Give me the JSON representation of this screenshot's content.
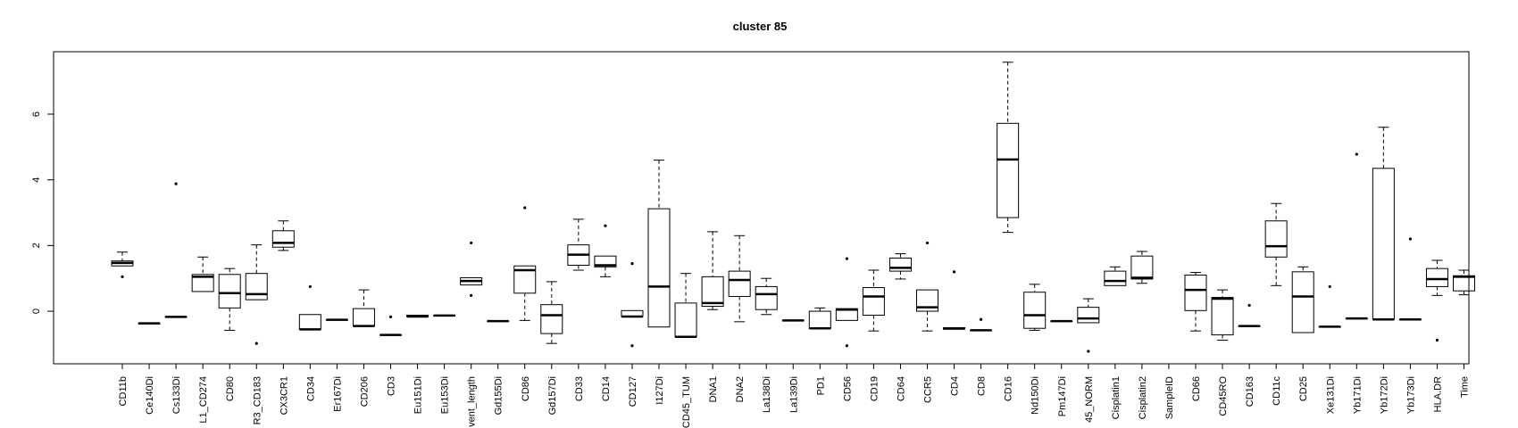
{
  "chart_data": {
    "type": "boxplot",
    "title": "cluster 85",
    "xlabel": "",
    "ylabel": "",
    "ylim": [
      -1.6,
      7.9
    ],
    "y_ticks": [
      0,
      2,
      4,
      6
    ],
    "grid": false,
    "legend": "none",
    "categories": [
      "CD11b",
      "Ce140Di",
      "Cs133Di",
      "L1_CD274",
      "CD80",
      "R3_CD183",
      "CX3CR1",
      "CD34",
      "Er167Di",
      "CD206",
      "CD3",
      "Eu151Di",
      "Eu153Di",
      "vent_length",
      "Gd155Di",
      "CD86",
      "Gd157Di",
      "CD33",
      "CD14",
      "CD127",
      "I127Di",
      "CD45_TUM",
      "DNA1",
      "DNA2",
      "La138Di",
      "La139Di",
      "PD1",
      "CD56",
      "CD19",
      "CD64",
      "CCR5",
      "CD4",
      "CD8",
      "CD16",
      "Nd150Di",
      "Pm147Di",
      "45_NORM",
      "Cisplatin1",
      "Cisplatin2",
      "SampleID",
      "CD66",
      "CD45RO",
      "CD163",
      "CD11c",
      "CD25",
      "Xe131Di",
      "Yb171Di",
      "Yb172Di",
      "Yb173Di",
      "HLA.DR",
      "Time"
    ],
    "boxes": [
      {
        "wlo": 1.38,
        "q1": 1.38,
        "med": 1.47,
        "q3": 1.53,
        "whi": 1.8,
        "out": [
          1.05
        ]
      },
      {
        "wlo": -0.37,
        "q1": -0.37,
        "med": -0.37,
        "q3": -0.37,
        "whi": -0.37,
        "out": []
      },
      {
        "wlo": -0.17,
        "q1": -0.17,
        "med": -0.17,
        "q3": -0.17,
        "whi": -0.17,
        "out": [
          3.88
        ]
      },
      {
        "wlo": 0.6,
        "q1": 0.6,
        "med": 1.05,
        "q3": 1.12,
        "whi": 1.65,
        "out": []
      },
      {
        "wlo": -0.58,
        "q1": 0.1,
        "med": 0.55,
        "q3": 1.12,
        "whi": 1.3,
        "out": []
      },
      {
        "wlo": 0.35,
        "q1": 0.35,
        "med": 0.52,
        "q3": 1.15,
        "whi": 2.02,
        "out": [
          -0.98
        ]
      },
      {
        "wlo": 1.85,
        "q1": 1.95,
        "med": 2.08,
        "q3": 2.45,
        "whi": 2.75,
        "out": []
      },
      {
        "wlo": -0.55,
        "q1": -0.55,
        "med": -0.55,
        "q3": -0.1,
        "whi": -0.1,
        "out": [
          0.75
        ]
      },
      {
        "wlo": -0.26,
        "q1": -0.26,
        "med": -0.26,
        "q3": -0.26,
        "whi": -0.26,
        "out": []
      },
      {
        "wlo": -0.45,
        "q1": -0.45,
        "med": -0.45,
        "q3": 0.08,
        "whi": 0.65,
        "out": []
      },
      {
        "wlo": -0.72,
        "q1": -0.72,
        "med": -0.72,
        "q3": -0.72,
        "whi": -0.72,
        "out": [
          -0.17
        ]
      },
      {
        "wlo": -0.16,
        "q1": -0.16,
        "med": -0.16,
        "q3": -0.12,
        "whi": -0.12,
        "out": []
      },
      {
        "wlo": -0.13,
        "q1": -0.13,
        "med": -0.13,
        "q3": -0.13,
        "whi": -0.13,
        "out": []
      },
      {
        "wlo": 0.8,
        "q1": 0.8,
        "med": 0.92,
        "q3": 1.02,
        "whi": 1.02,
        "out": [
          2.08,
          0.48
        ]
      },
      {
        "wlo": -0.3,
        "q1": -0.3,
        "med": -0.3,
        "q3": -0.3,
        "whi": -0.3,
        "out": []
      },
      {
        "wlo": -0.28,
        "q1": 0.55,
        "med": 1.25,
        "q3": 1.38,
        "whi": 1.38,
        "out": [
          3.15
        ]
      },
      {
        "wlo": -0.98,
        "q1": -0.68,
        "med": -0.12,
        "q3": 0.2,
        "whi": 0.9,
        "out": []
      },
      {
        "wlo": 1.25,
        "q1": 1.4,
        "med": 1.72,
        "q3": 2.02,
        "whi": 2.8,
        "out": []
      },
      {
        "wlo": 1.05,
        "q1": 1.35,
        "med": 1.4,
        "q3": 1.68,
        "whi": 1.68,
        "out": [
          2.6
        ]
      },
      {
        "wlo": -0.16,
        "q1": -0.16,
        "med": -0.16,
        "q3": 0.02,
        "whi": 0.02,
        "out": [
          1.45,
          -1.05
        ]
      },
      {
        "wlo": -0.48,
        "q1": -0.48,
        "med": 0.75,
        "q3": 3.12,
        "whi": 4.6,
        "out": []
      },
      {
        "wlo": -0.78,
        "q1": -0.78,
        "med": -0.78,
        "q3": 0.25,
        "whi": 1.15,
        "out": []
      },
      {
        "wlo": 0.05,
        "q1": 0.15,
        "med": 0.25,
        "q3": 1.05,
        "whi": 2.42,
        "out": []
      },
      {
        "wlo": -0.32,
        "q1": 0.45,
        "med": 0.95,
        "q3": 1.22,
        "whi": 2.3,
        "out": []
      },
      {
        "wlo": -0.1,
        "q1": 0.05,
        "med": 0.52,
        "q3": 0.75,
        "whi": 1.0,
        "out": []
      },
      {
        "wlo": -0.28,
        "q1": -0.28,
        "med": -0.28,
        "q3": -0.28,
        "whi": -0.28,
        "out": []
      },
      {
        "wlo": -0.52,
        "q1": -0.52,
        "med": -0.52,
        "q3": 0.0,
        "whi": 0.1,
        "out": []
      },
      {
        "wlo": -0.28,
        "q1": -0.28,
        "med": 0.05,
        "q3": 0.08,
        "whi": 0.08,
        "out": [
          1.6,
          -1.05
        ]
      },
      {
        "wlo": -0.6,
        "q1": -0.12,
        "med": 0.45,
        "q3": 0.72,
        "whi": 1.25,
        "out": []
      },
      {
        "wlo": 0.98,
        "q1": 1.22,
        "med": 1.32,
        "q3": 1.62,
        "whi": 1.75,
        "out": []
      },
      {
        "wlo": -0.6,
        "q1": 0.0,
        "med": 0.12,
        "q3": 0.65,
        "whi": 0.65,
        "out": [
          2.08
        ]
      },
      {
        "wlo": -0.55,
        "q1": -0.55,
        "med": -0.52,
        "q3": -0.5,
        "whi": -0.5,
        "out": [
          1.2
        ]
      },
      {
        "wlo": -0.58,
        "q1": -0.58,
        "med": -0.58,
        "q3": -0.58,
        "whi": -0.58,
        "out": [
          -0.25
        ]
      },
      {
        "wlo": 2.4,
        "q1": 2.85,
        "med": 4.62,
        "q3": 5.72,
        "whi": 7.58,
        "out": []
      },
      {
        "wlo": -0.58,
        "q1": -0.52,
        "med": -0.12,
        "q3": 0.58,
        "whi": 0.82,
        "out": []
      },
      {
        "wlo": -0.3,
        "q1": -0.3,
        "med": -0.3,
        "q3": -0.3,
        "whi": -0.3,
        "out": []
      },
      {
        "wlo": -0.35,
        "q1": -0.35,
        "med": -0.22,
        "q3": 0.12,
        "whi": 0.38,
        "out": [
          -1.22
        ]
      },
      {
        "wlo": 0.78,
        "q1": 0.78,
        "med": 0.92,
        "q3": 1.22,
        "whi": 1.35,
        "out": []
      },
      {
        "wlo": 0.85,
        "q1": 0.98,
        "med": 1.02,
        "q3": 1.68,
        "whi": 1.82,
        "out": []
      },
      {
        "wlo": null,
        "q1": null,
        "med": null,
        "q3": null,
        "whi": null,
        "out": []
      },
      {
        "wlo": -0.6,
        "q1": 0.02,
        "med": 0.65,
        "q3": 1.1,
        "whi": 1.18,
        "out": []
      },
      {
        "wlo": -0.88,
        "q1": -0.72,
        "med": 0.38,
        "q3": 0.42,
        "whi": 0.65,
        "out": []
      },
      {
        "wlo": -0.45,
        "q1": -0.45,
        "med": -0.45,
        "q3": -0.45,
        "whi": -0.45,
        "out": [
          0.18
        ]
      },
      {
        "wlo": 0.78,
        "q1": 1.65,
        "med": 1.98,
        "q3": 2.75,
        "whi": 3.28,
        "out": []
      },
      {
        "wlo": -0.65,
        "q1": -0.65,
        "med": 0.45,
        "q3": 1.2,
        "whi": 1.35,
        "out": []
      },
      {
        "wlo": -0.47,
        "q1": -0.47,
        "med": -0.47,
        "q3": -0.47,
        "whi": -0.47,
        "out": [
          0.75
        ]
      },
      {
        "wlo": -0.22,
        "q1": -0.22,
        "med": -0.22,
        "q3": -0.22,
        "whi": -0.22,
        "out": [
          4.78
        ]
      },
      {
        "wlo": -0.25,
        "q1": -0.25,
        "med": -0.25,
        "q3": 4.35,
        "whi": 5.6,
        "out": []
      },
      {
        "wlo": -0.25,
        "q1": -0.25,
        "med": -0.25,
        "q3": -0.25,
        "whi": -0.25,
        "out": [
          2.2
        ]
      },
      {
        "wlo": 0.48,
        "q1": 0.75,
        "med": 0.98,
        "q3": 1.3,
        "whi": 1.55,
        "out": [
          -0.88
        ]
      },
      {
        "wlo": 0.5,
        "q1": 0.62,
        "med": 1.05,
        "q3": 1.08,
        "whi": 1.25,
        "out": []
      }
    ]
  }
}
